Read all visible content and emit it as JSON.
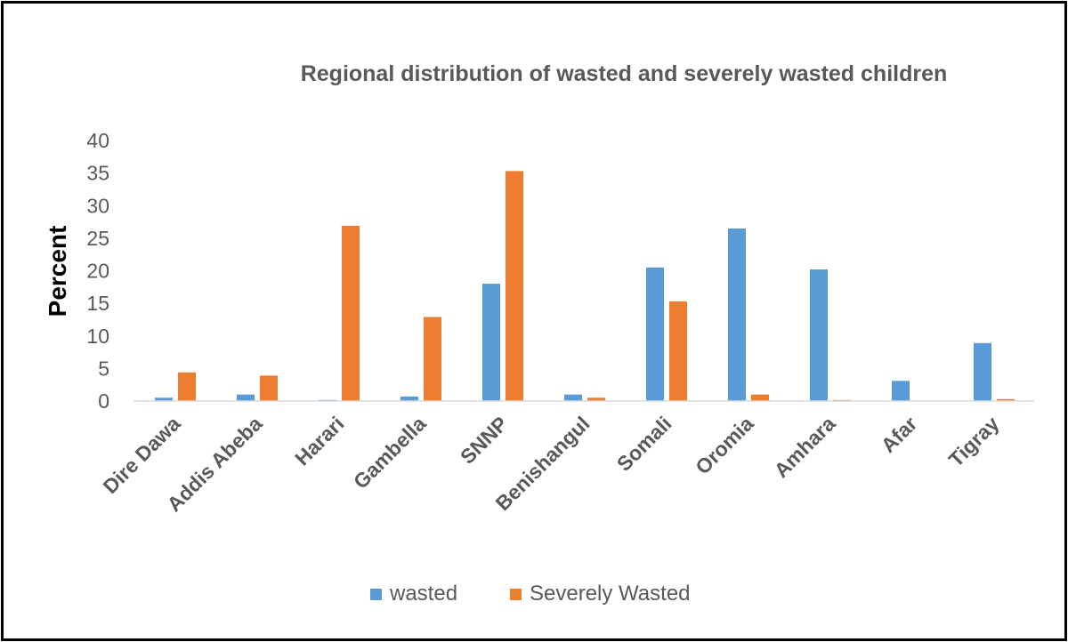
{
  "chart_data": {
    "type": "bar",
    "title": "Regional distribution of wasted and severely wasted children",
    "xlabel": "",
    "ylabel": "Percent",
    "ylim": [
      0,
      40
    ],
    "yticks": [
      0,
      5,
      10,
      15,
      20,
      25,
      30,
      35,
      40
    ],
    "grid": false,
    "legend_position": "bottom",
    "categories": [
      "Dire Dawa",
      "Addis Abeba",
      "Harari",
      "Gambella",
      "SNNP",
      "Benishangul",
      "Somali",
      "Oromia",
      "Amhara",
      "Afar",
      "Tigray"
    ],
    "series": [
      {
        "name": "wasted",
        "color": "#5B9BD5",
        "values": [
          0.5,
          1.0,
          0.1,
          0.7,
          18.0,
          1.0,
          20.5,
          26.5,
          20.2,
          3.1,
          8.9
        ]
      },
      {
        "name": "Severely Wasted",
        "color": "#ED7D31",
        "values": [
          4.4,
          3.9,
          26.9,
          12.9,
          35.3,
          0.5,
          15.3,
          1.0,
          0.1,
          0.0,
          0.3
        ]
      }
    ]
  }
}
